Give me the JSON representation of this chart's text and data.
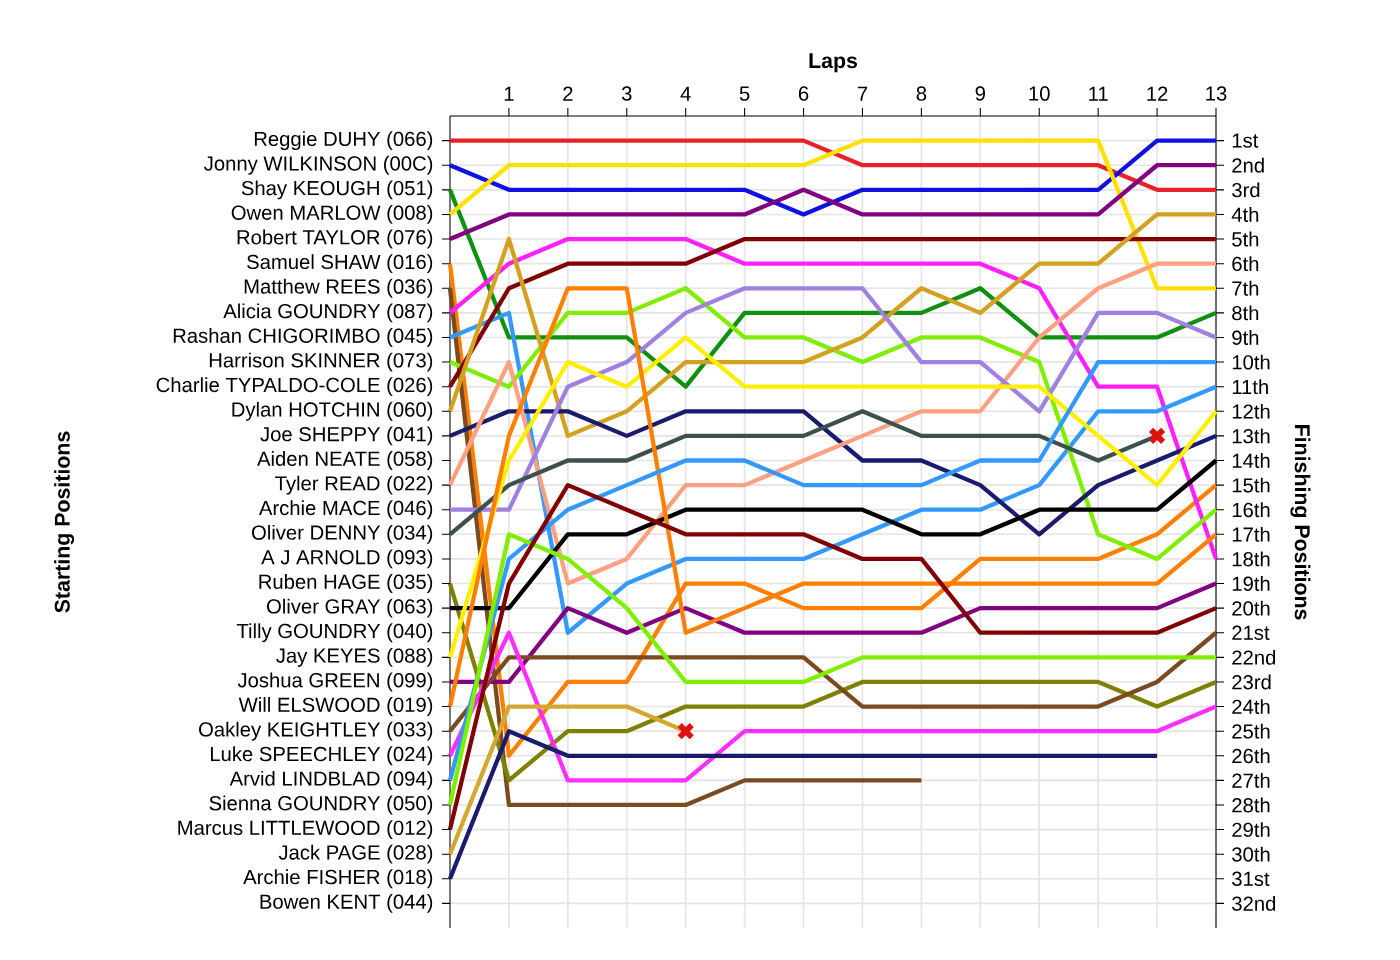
{
  "chart_data": {
    "type": "line",
    "xlabel": "Laps",
    "y2label": "Finishing Positions",
    "grid": true,
    "x": [
      0,
      1,
      2,
      3,
      4,
      5,
      6,
      7,
      8,
      9,
      10,
      11,
      12,
      13
    ],
    "xlim": [
      0,
      13
    ],
    "xticks": [
      1,
      2,
      3,
      4,
      5,
      6,
      7,
      8,
      9,
      10,
      11,
      12,
      13
    ],
    "annotations": [
      "Reggie DUHY (066)",
      "Jonny WILKINSON (00C)",
      "Shay KEOUGH (051)",
      "Owen MARLOW (008)",
      "Robert TAYLOR (076)",
      "Samuel SHAW (016)",
      "Matthew REES (036)",
      "Alicia GOUNDRY (087)",
      "Rashan CHIGORIMBO (045)",
      "Harrison SKINNER (073)",
      "Charlie TYPALDO-COLE (026)",
      "Dylan HOTCHIN (060)",
      "Joe SHEPPY (041)",
      "Aiden NEATE (058)",
      "Tyler READ (022)",
      "Archie MACE (046)",
      "Oliver DENNY (034)",
      "A J ARNOLD (093)",
      "Ruben HAGE (035)",
      "Oliver GRAY (063)",
      "Tilly GOUNDRY (040)",
      "Jay KEYES (088)",
      "Joshua GREEN (099)",
      "Will ELSWOOD (019)",
      "Oakley KEIGHTLEY (033)",
      "Luke SPEECHLEY (024)",
      "Arvid LINDBLAD (094)",
      "Sienna GOUNDRY (050)",
      "Marcus LITTLEWOOD (012)",
      "Jack PAGE (028)",
      "Archie FISHER (018)",
      "Bowen KENT (044)",
      "Starting Positions"
    ],
    "y2lim": [
      33,
      0
    ],
    "y2ticks": [
      {
        "value": 1,
        "label": "1st"
      },
      {
        "value": 2,
        "label": "2nd"
      },
      {
        "value": 3,
        "label": "3rd"
      },
      {
        "value": 4,
        "label": "4th"
      },
      {
        "value": 5,
        "label": "5th"
      },
      {
        "value": 6,
        "label": "6th"
      },
      {
        "value": 7,
        "label": "7th"
      },
      {
        "value": 8,
        "label": "8th"
      },
      {
        "value": 9,
        "label": "9th"
      },
      {
        "value": 10,
        "label": "10th"
      },
      {
        "value": 11,
        "label": "11th"
      },
      {
        "value": 12,
        "label": "12th"
      },
      {
        "value": 13,
        "label": "13th"
      },
      {
        "value": 14,
        "label": "14th"
      },
      {
        "value": 15,
        "label": "15th"
      },
      {
        "value": 16,
        "label": "16th"
      },
      {
        "value": 17,
        "label": "17th"
      },
      {
        "value": 18,
        "label": "18th"
      },
      {
        "value": 19,
        "label": "19th"
      },
      {
        "value": 20,
        "label": "20th"
      },
      {
        "value": 21,
        "label": "21st"
      },
      {
        "value": 22,
        "label": "22nd"
      },
      {
        "value": 23,
        "label": "23rd"
      },
      {
        "value": 24,
        "label": "24th"
      },
      {
        "value": 25,
        "label": "25th"
      },
      {
        "value": 26,
        "label": "26th"
      },
      {
        "value": 27,
        "label": "27th"
      },
      {
        "value": 28,
        "label": "28th"
      },
      {
        "value": 29,
        "label": "29th"
      },
      {
        "value": 30,
        "label": "30th"
      },
      {
        "value": 31,
        "label": "31st"
      },
      {
        "value": 32,
        "label": "32nd"
      }
    ],
    "series": [
      {
        "axis": "y2",
        "color": "#e8202a",
        "values": [
          1,
          1,
          1,
          1,
          1,
          1,
          1,
          2,
          2,
          2,
          2,
          2,
          3,
          3
        ]
      },
      {
        "axis": "y2",
        "color": "#1010e0",
        "values": [
          2,
          3,
          3,
          3,
          3,
          3,
          4,
          3,
          3,
          3,
          3,
          3,
          1,
          1
        ]
      },
      {
        "axis": "y2",
        "color": "#109010",
        "values": [
          3,
          9,
          9,
          9,
          11,
          8,
          8,
          8,
          8,
          7,
          9,
          9,
          9,
          8
        ]
      },
      {
        "axis": "y2",
        "color": "#ffe000",
        "values": [
          4,
          2,
          2,
          2,
          2,
          2,
          2,
          1,
          1,
          1,
          1,
          1,
          7,
          7
        ]
      },
      {
        "axis": "y2",
        "color": "#800080",
        "values": [
          5,
          4,
          4,
          4,
          4,
          4,
          3,
          4,
          4,
          4,
          4,
          4,
          2,
          2
        ]
      },
      {
        "axis": "y2",
        "color": "#ff8000",
        "values": [
          6,
          26,
          23,
          23,
          19,
          19,
          20,
          20,
          20,
          18,
          18,
          18,
          17,
          15
        ]
      },
      {
        "axis": "y2",
        "color": "#7b4a1e",
        "values": [
          7,
          28,
          28,
          28,
          28,
          27,
          27,
          27,
          27,
          null,
          null,
          null,
          null,
          null
        ]
      },
      {
        "axis": "y2",
        "color": "#ff20ff",
        "values": [
          8,
          6,
          5,
          5,
          5,
          6,
          6,
          6,
          6,
          6,
          7,
          11,
          11,
          18
        ]
      },
      {
        "axis": "y2",
        "color": "#3399ff",
        "values": [
          9,
          8,
          21,
          19,
          18,
          18,
          18,
          17,
          16,
          16,
          15,
          12,
          12,
          11
        ]
      },
      {
        "axis": "y2",
        "color": "#80ee00",
        "values": [
          10,
          11,
          8,
          8,
          7,
          9,
          9,
          10,
          9,
          9,
          10,
          17,
          18,
          16
        ]
      },
      {
        "axis": "y2",
        "color": "#800000",
        "values": [
          11,
          7,
          6,
          6,
          6,
          5,
          5,
          5,
          5,
          5,
          5,
          5,
          5,
          5
        ]
      },
      {
        "axis": "y2",
        "color": "#d4a020",
        "values": [
          12,
          5,
          13,
          12,
          10,
          10,
          10,
          9,
          7,
          8,
          6,
          6,
          4,
          4
        ]
      },
      {
        "axis": "y2",
        "color": "#1a1a6e",
        "values": [
          13,
          12,
          12,
          13,
          12,
          12,
          12,
          14,
          14,
          15,
          17,
          15,
          14,
          13
        ]
      },
      {
        "axis": "y2",
        "color": "#ffa080",
        "values": [
          15,
          10,
          19,
          18,
          15,
          15,
          14,
          13,
          12,
          12,
          9,
          7,
          6,
          6
        ]
      },
      {
        "axis": "y2",
        "color": "#a080e0",
        "values": [
          16,
          16,
          11,
          10,
          8,
          7,
          7,
          7,
          10,
          10,
          12,
          8,
          8,
          9
        ]
      },
      {
        "axis": "y2",
        "color": "#3c5050",
        "values": [
          17,
          15,
          14,
          14,
          13,
          13,
          13,
          12,
          13,
          13,
          13,
          14,
          13,
          null
        ]
      },
      {
        "axis": "y2",
        "color": "#808000",
        "values": [
          19,
          27,
          25,
          25,
          24,
          24,
          24,
          23,
          23,
          23,
          23,
          23,
          24,
          23
        ]
      },
      {
        "axis": "y2",
        "color": "#000000",
        "values": [
          20,
          20,
          17,
          17,
          16,
          16,
          16,
          16,
          17,
          17,
          16,
          16,
          16,
          14
        ]
      },
      {
        "axis": "y2",
        "color": "#ffee00",
        "values": [
          22,
          14,
          10,
          11,
          9,
          11,
          11,
          11,
          11,
          11,
          11,
          13,
          15,
          12
        ]
      },
      {
        "axis": "y2",
        "color": "#800080",
        "values": [
          23,
          23,
          20,
          21,
          20,
          21,
          21,
          21,
          21,
          20,
          20,
          20,
          20,
          19
        ]
      },
      {
        "axis": "y2",
        "color": "#ff8000",
        "values": [
          24,
          13,
          7,
          7,
          21,
          20,
          19,
          19,
          19,
          19,
          19,
          19,
          19,
          17
        ]
      },
      {
        "axis": "y2",
        "color": "#7b4a1e",
        "values": [
          25,
          22,
          22,
          22,
          22,
          22,
          22,
          24,
          24,
          24,
          24,
          24,
          23,
          21
        ]
      },
      {
        "axis": "y2",
        "color": "#ff30ff",
        "values": [
          26,
          21,
          27,
          27,
          27,
          25,
          25,
          25,
          25,
          25,
          25,
          25,
          25,
          24
        ]
      },
      {
        "axis": "y2",
        "color": "#3399ff",
        "values": [
          27,
          18,
          16,
          15,
          14,
          14,
          15,
          15,
          15,
          14,
          14,
          10,
          10,
          10
        ]
      },
      {
        "axis": "y2",
        "color": "#80ee00",
        "values": [
          28,
          17,
          18,
          20,
          23,
          23,
          23,
          22,
          22,
          22,
          22,
          22,
          22,
          22
        ]
      },
      {
        "axis": "y2",
        "color": "#800000",
        "values": [
          29,
          19,
          15,
          16,
          17,
          17,
          17,
          18,
          18,
          21,
          21,
          21,
          21,
          20
        ]
      },
      {
        "axis": "y2",
        "color": "#d4a830",
        "values": [
          30,
          24,
          24,
          24,
          25,
          null,
          null,
          null,
          null,
          null,
          null,
          null,
          null,
          null
        ]
      },
      {
        "axis": "y2",
        "color": "#1a1a6e",
        "values": [
          31,
          25,
          26,
          26,
          26,
          26,
          26,
          26,
          26,
          26,
          26,
          26,
          26,
          null
        ]
      },
      {
        "axis": "y2",
        "type": "scatter",
        "marker": "cross",
        "color": "#e01010",
        "x": [
          4,
          12
        ],
        "values": [
          25,
          13
        ]
      }
    ]
  }
}
